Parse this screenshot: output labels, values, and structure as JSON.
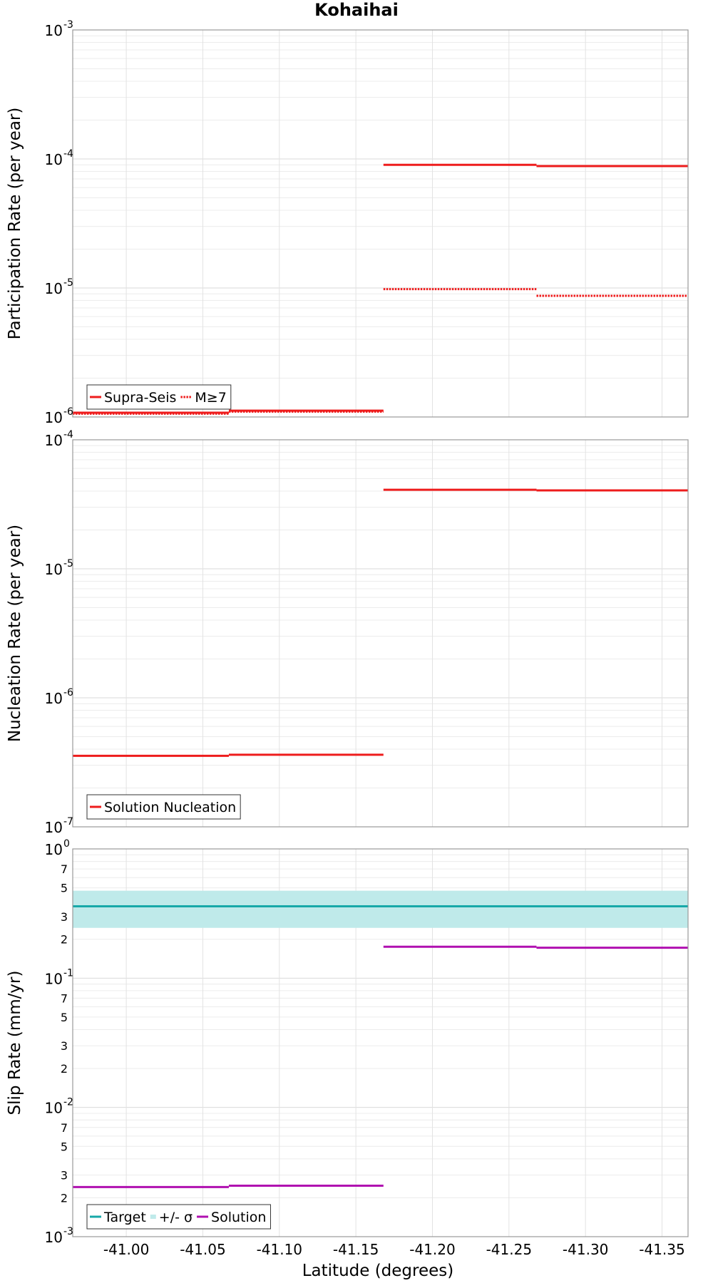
{
  "chart_data": {
    "title": "Kohaihai",
    "xlabel": "Latitude (degrees)",
    "type": "line",
    "x_range": [
      -40.965,
      -41.367
    ],
    "x_ticks": [
      -41.0,
      -41.05,
      -41.1,
      -41.15,
      -41.2,
      -41.25,
      -41.3,
      -41.35
    ],
    "x_tick_labels": [
      "-41.00",
      "-41.05",
      "-41.10",
      "-41.15",
      "-41.20",
      "-41.25",
      "-41.30",
      "-41.35"
    ],
    "grid": true,
    "panels": [
      {
        "ylabel": "Participation Rate (per year)",
        "yscale": "log",
        "ylim": [
          1e-06,
          0.001
        ],
        "y_major_ticks": [
          {
            "value": 1e-06,
            "base": "10",
            "exp": "-6"
          },
          {
            "value": 1e-05,
            "base": "10",
            "exp": "-5"
          },
          {
            "value": 0.0001,
            "base": "10",
            "exp": "-4"
          },
          {
            "value": 0.001,
            "base": "10",
            "exp": "-3"
          }
        ],
        "y_minor_labels": [],
        "bands": [],
        "series": [
          {
            "name": "Supra-Seis",
            "color": "#ee1c1c",
            "dash": "solid",
            "segments": [
              {
                "x0": -40.965,
                "x1": -41.067,
                "y": 1.08e-06
              },
              {
                "x0": -41.067,
                "x1": -41.168,
                "y": 1.12e-06
              },
              {
                "x0": -41.168,
                "x1": -41.268,
                "y": 9e-05
              },
              {
                "x0": -41.268,
                "x1": -41.367,
                "y": 8.8e-05
              }
            ]
          },
          {
            "name": "M≥7",
            "color": "#ee1c1c",
            "dash": "dotted",
            "segments": [
              {
                "x0": -40.965,
                "x1": -41.067,
                "y": 1.06e-06
              },
              {
                "x0": -41.067,
                "x1": -41.168,
                "y": 1.1e-06
              },
              {
                "x0": -41.168,
                "x1": -41.268,
                "y": 9.8e-06
              },
              {
                "x0": -41.268,
                "x1": -41.367,
                "y": 8.7e-06
              }
            ]
          }
        ],
        "legend": {
          "placement": "bottom-left",
          "entries": [
            {
              "label": "Supra-Seis",
              "type": "line",
              "color": "#ee1c1c",
              "dash": "solid"
            },
            {
              "label": "M≥7",
              "type": "line",
              "color": "#ee1c1c",
              "dash": "dotted"
            }
          ]
        }
      },
      {
        "ylabel": "Nucleation Rate (per year)",
        "yscale": "log",
        "ylim": [
          1e-07,
          0.0001
        ],
        "y_major_ticks": [
          {
            "value": 1e-07,
            "base": "10",
            "exp": "-7"
          },
          {
            "value": 1e-06,
            "base": "10",
            "exp": "-6"
          },
          {
            "value": 1e-05,
            "base": "10",
            "exp": "-5"
          },
          {
            "value": 0.0001,
            "base": "10",
            "exp": "-4"
          }
        ],
        "y_minor_labels": [],
        "bands": [],
        "series": [
          {
            "name": "Solution Nucleation",
            "color": "#ee1c1c",
            "dash": "solid",
            "segments": [
              {
                "x0": -40.965,
                "x1": -41.067,
                "y": 3.55e-07
              },
              {
                "x0": -41.067,
                "x1": -41.168,
                "y": 3.62e-07
              },
              {
                "x0": -41.168,
                "x1": -41.268,
                "y": 4.1e-05
              },
              {
                "x0": -41.268,
                "x1": -41.367,
                "y": 4.05e-05
              }
            ]
          }
        ],
        "legend": {
          "placement": "bottom-left",
          "entries": [
            {
              "label": "Solution Nucleation",
              "type": "line",
              "color": "#ee1c1c",
              "dash": "solid"
            }
          ]
        }
      },
      {
        "ylabel": "Slip Rate (mm/yr)",
        "yscale": "log",
        "ylim": [
          0.001,
          1
        ],
        "y_major_ticks": [
          {
            "value": 0.001,
            "base": "10",
            "exp": "-3"
          },
          {
            "value": 0.01,
            "base": "10",
            "exp": "-2"
          },
          {
            "value": 0.1,
            "base": "10",
            "exp": "-1"
          },
          {
            "value": 1,
            "base": "10",
            "exp": "0"
          }
        ],
        "y_minor_labels": [
          {
            "value": 0.002,
            "label": "2"
          },
          {
            "value": 0.003,
            "label": "3"
          },
          {
            "value": 0.005,
            "label": "5"
          },
          {
            "value": 0.007,
            "label": "7"
          },
          {
            "value": 0.02,
            "label": "2"
          },
          {
            "value": 0.03,
            "label": "3"
          },
          {
            "value": 0.05,
            "label": "5"
          },
          {
            "value": 0.07,
            "label": "7"
          },
          {
            "value": 0.2,
            "label": "2"
          },
          {
            "value": 0.3,
            "label": "3"
          },
          {
            "value": 0.5,
            "label": "5"
          },
          {
            "value": 0.7,
            "label": "7"
          }
        ],
        "bands": [
          {
            "name": "+/- σ",
            "color": "#bfeaea",
            "x0": -40.965,
            "x1": -41.367,
            "y0": 0.245,
            "y1": 0.475
          }
        ],
        "series": [
          {
            "name": "Target",
            "color": "#17a8a8",
            "dash": "solid",
            "segments": [
              {
                "x0": -40.965,
                "x1": -41.367,
                "y": 0.36
              }
            ]
          },
          {
            "name": "Solution",
            "color": "#b010b0",
            "dash": "solid",
            "segments": [
              {
                "x0": -40.965,
                "x1": -41.067,
                "y": 0.00242
              },
              {
                "x0": -41.067,
                "x1": -41.168,
                "y": 0.00248
              },
              {
                "x0": -41.168,
                "x1": -41.268,
                "y": 0.175
              },
              {
                "x0": -41.268,
                "x1": -41.367,
                "y": 0.172
              }
            ]
          }
        ],
        "legend": {
          "placement": "bottom-left",
          "entries": [
            {
              "label": "Target",
              "type": "line",
              "color": "#17a8a8",
              "dash": "solid"
            },
            {
              "label": "+/- σ",
              "type": "patch",
              "color": "#bfeaea",
              "dash": "solid"
            },
            {
              "label": "Solution",
              "type": "line",
              "color": "#b010b0",
              "dash": "solid"
            }
          ]
        }
      }
    ]
  }
}
